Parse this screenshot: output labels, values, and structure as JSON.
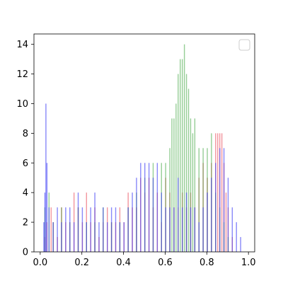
{
  "chart_data": {
    "type": "histogram",
    "title": "",
    "xlabel": "",
    "ylabel": "",
    "xlim": [
      -0.03,
      1.03
    ],
    "ylim": [
      0,
      14.7
    ],
    "xticks": [
      0.0,
      0.2,
      0.4,
      0.6,
      0.8,
      1.0
    ],
    "xtick_labels": [
      "0.0",
      "0.2",
      "0.4",
      "0.6",
      "0.8",
      "1.0"
    ],
    "yticks": [
      0,
      2,
      4,
      6,
      8,
      10,
      12,
      14
    ],
    "ytick_labels": [
      "0",
      "2",
      "4",
      "6",
      "8",
      "10",
      "12",
      "14"
    ],
    "bin_width": 0.0048,
    "legend": {
      "position": "top-right",
      "entries": []
    },
    "grid": false,
    "series": [
      {
        "color": "#e8404f",
        "opacity": 0.55,
        "bin_starts": [
          0.02,
          0.03,
          0.05,
          0.06,
          0.08,
          0.1,
          0.12,
          0.14,
          0.16,
          0.18,
          0.2,
          0.22,
          0.24,
          0.26,
          0.28,
          0.3,
          0.32,
          0.34,
          0.36,
          0.38,
          0.4,
          0.42,
          0.44,
          0.46,
          0.48,
          0.5,
          0.52,
          0.54,
          0.56,
          0.58,
          0.6,
          0.62,
          0.64,
          0.66,
          0.68,
          0.7,
          0.72,
          0.74,
          0.76,
          0.78,
          0.8,
          0.82,
          0.84,
          0.85,
          0.86,
          0.87,
          0.88,
          0.89,
          0.9,
          0.92
        ],
        "counts": [
          1,
          2,
          3,
          2,
          1,
          3,
          2,
          2,
          4,
          3,
          2,
          4,
          2,
          3,
          1,
          2,
          3,
          2,
          2,
          3,
          2,
          4,
          3,
          3,
          5,
          4,
          5,
          3,
          4,
          2,
          5,
          4,
          3,
          3,
          4,
          3,
          4,
          3,
          5,
          6,
          5,
          6,
          8,
          8,
          8,
          8,
          6,
          4,
          3,
          1
        ]
      },
      {
        "color": "#3fa53f",
        "opacity": 0.55,
        "bin_starts": [
          0.02,
          0.04,
          0.06,
          0.1,
          0.14,
          0.18,
          0.22,
          0.26,
          0.3,
          0.34,
          0.38,
          0.42,
          0.46,
          0.5,
          0.54,
          0.58,
          0.6,
          0.62,
          0.63,
          0.64,
          0.65,
          0.66,
          0.67,
          0.68,
          0.69,
          0.7,
          0.71,
          0.72,
          0.73,
          0.74,
          0.76,
          0.78,
          0.8,
          0.82,
          0.84,
          0.86,
          0.88,
          0.9
        ],
        "counts": [
          3,
          4,
          2,
          3,
          2,
          3,
          2,
          2,
          3,
          2,
          2,
          3,
          4,
          5,
          6,
          6,
          6,
          7,
          9,
          9,
          10,
          12,
          13,
          13,
          14,
          12,
          11,
          9,
          8,
          9,
          7,
          7,
          7,
          8,
          4,
          3,
          2,
          1
        ]
      },
      {
        "color": "#3b3bf5",
        "opacity": 0.6,
        "bin_starts": [
          0.015,
          0.02,
          0.025,
          0.03,
          0.04,
          0.06,
          0.08,
          0.1,
          0.12,
          0.14,
          0.16,
          0.18,
          0.2,
          0.22,
          0.24,
          0.26,
          0.28,
          0.3,
          0.32,
          0.34,
          0.36,
          0.38,
          0.4,
          0.42,
          0.44,
          0.46,
          0.48,
          0.5,
          0.52,
          0.54,
          0.56,
          0.58,
          0.6,
          0.62,
          0.64,
          0.66,
          0.68,
          0.7,
          0.72,
          0.74,
          0.76,
          0.78,
          0.8,
          0.82,
          0.84,
          0.86,
          0.88,
          0.9,
          0.92,
          0.94,
          0.96
        ],
        "counts": [
          2,
          4,
          10,
          6,
          3,
          2,
          3,
          2,
          3,
          3,
          2,
          4,
          3,
          2,
          3,
          4,
          2,
          3,
          2,
          3,
          3,
          2,
          2,
          3,
          4,
          5,
          6,
          6,
          6,
          5,
          6,
          4,
          3,
          3,
          3,
          5,
          3,
          4,
          3,
          3,
          2,
          3,
          4,
          5,
          6,
          7,
          7,
          5,
          3,
          2,
          1
        ]
      }
    ]
  }
}
